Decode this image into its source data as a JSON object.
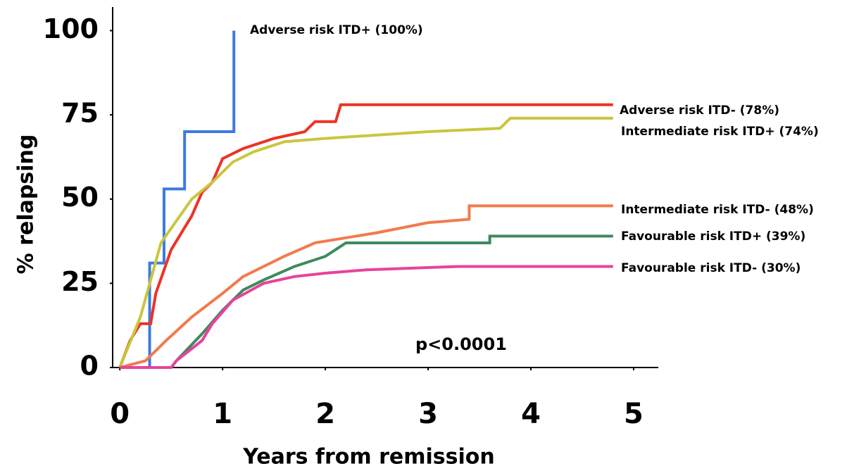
{
  "chart_data": {
    "type": "line",
    "x_label": "Years from remission",
    "y_label": "% relapsing",
    "annotation": "p<0.0001",
    "xlim": [
      -0.07,
      5.24
    ],
    "ylim": [
      0,
      107
    ],
    "xticks": [
      0,
      1,
      2,
      3,
      4,
      5
    ],
    "yticks": [
      0,
      25,
      50,
      75,
      100
    ],
    "grid": false,
    "series": [
      {
        "name": "Adverse risk ITD+ (100%)",
        "color": "#3b7be0",
        "x": [
          0,
          0.29,
          0.29,
          0.43,
          0.43,
          0.63,
          0.63,
          1.11,
          1.11
        ],
        "values": [
          0,
          0,
          31,
          31,
          53,
          53,
          70,
          70,
          100
        ]
      },
      {
        "name": "Adverse risk ITD- (78%)",
        "color": "#ec3326",
        "x": [
          0,
          0.1,
          0.2,
          0.3,
          0.35,
          0.5,
          0.6,
          0.7,
          0.8,
          0.9,
          1.0,
          1.2,
          1.5,
          1.8,
          1.9,
          2.1,
          2.15,
          4.8
        ],
        "values": [
          0,
          8,
          13,
          13,
          22,
          35,
          40,
          45,
          52,
          55,
          62,
          65,
          68,
          70,
          73,
          73,
          78,
          78
        ]
      },
      {
        "name": "Intermediate risk ITD+ (74%)",
        "color": "#c9c63e",
        "x": [
          0,
          0.2,
          0.4,
          0.7,
          0.9,
          1.1,
          1.3,
          1.6,
          2.0,
          2.5,
          3.0,
          3.7,
          3.8,
          4.8
        ],
        "values": [
          0,
          15,
          37,
          50,
          55,
          61,
          64,
          67,
          68,
          69,
          70,
          71,
          74,
          74
        ]
      },
      {
        "name": "Intermediate risk ITD- (48%)",
        "color": "#f27a4c",
        "x": [
          0,
          0.25,
          0.45,
          0.7,
          1.0,
          1.2,
          1.4,
          1.6,
          1.9,
          2.5,
          3.0,
          3.4,
          3.4,
          4.8
        ],
        "values": [
          0,
          2,
          8,
          15,
          22,
          27,
          30,
          33,
          37,
          40,
          43,
          44,
          48,
          48
        ]
      },
      {
        "name": "Favourable risk ITD+ (39%)",
        "color": "#3f8a5c",
        "x": [
          0,
          0.5,
          0.55,
          0.8,
          1.0,
          1.2,
          1.4,
          1.7,
          2.0,
          2.1,
          2.2,
          3.6,
          3.6,
          4.8
        ],
        "values": [
          0,
          0,
          2,
          10,
          17,
          23,
          26,
          30,
          33,
          35,
          37,
          37,
          39,
          39
        ]
      },
      {
        "name": "Favourable risk ITD- (30%)",
        "color": "#e8429c",
        "x": [
          0,
          0.5,
          0.55,
          0.8,
          0.9,
          1.1,
          1.4,
          1.7,
          2.0,
          2.4,
          3.3,
          4.8
        ],
        "values": [
          0,
          0,
          2,
          8,
          13,
          20,
          25,
          27,
          28,
          29,
          30,
          30
        ]
      }
    ]
  }
}
